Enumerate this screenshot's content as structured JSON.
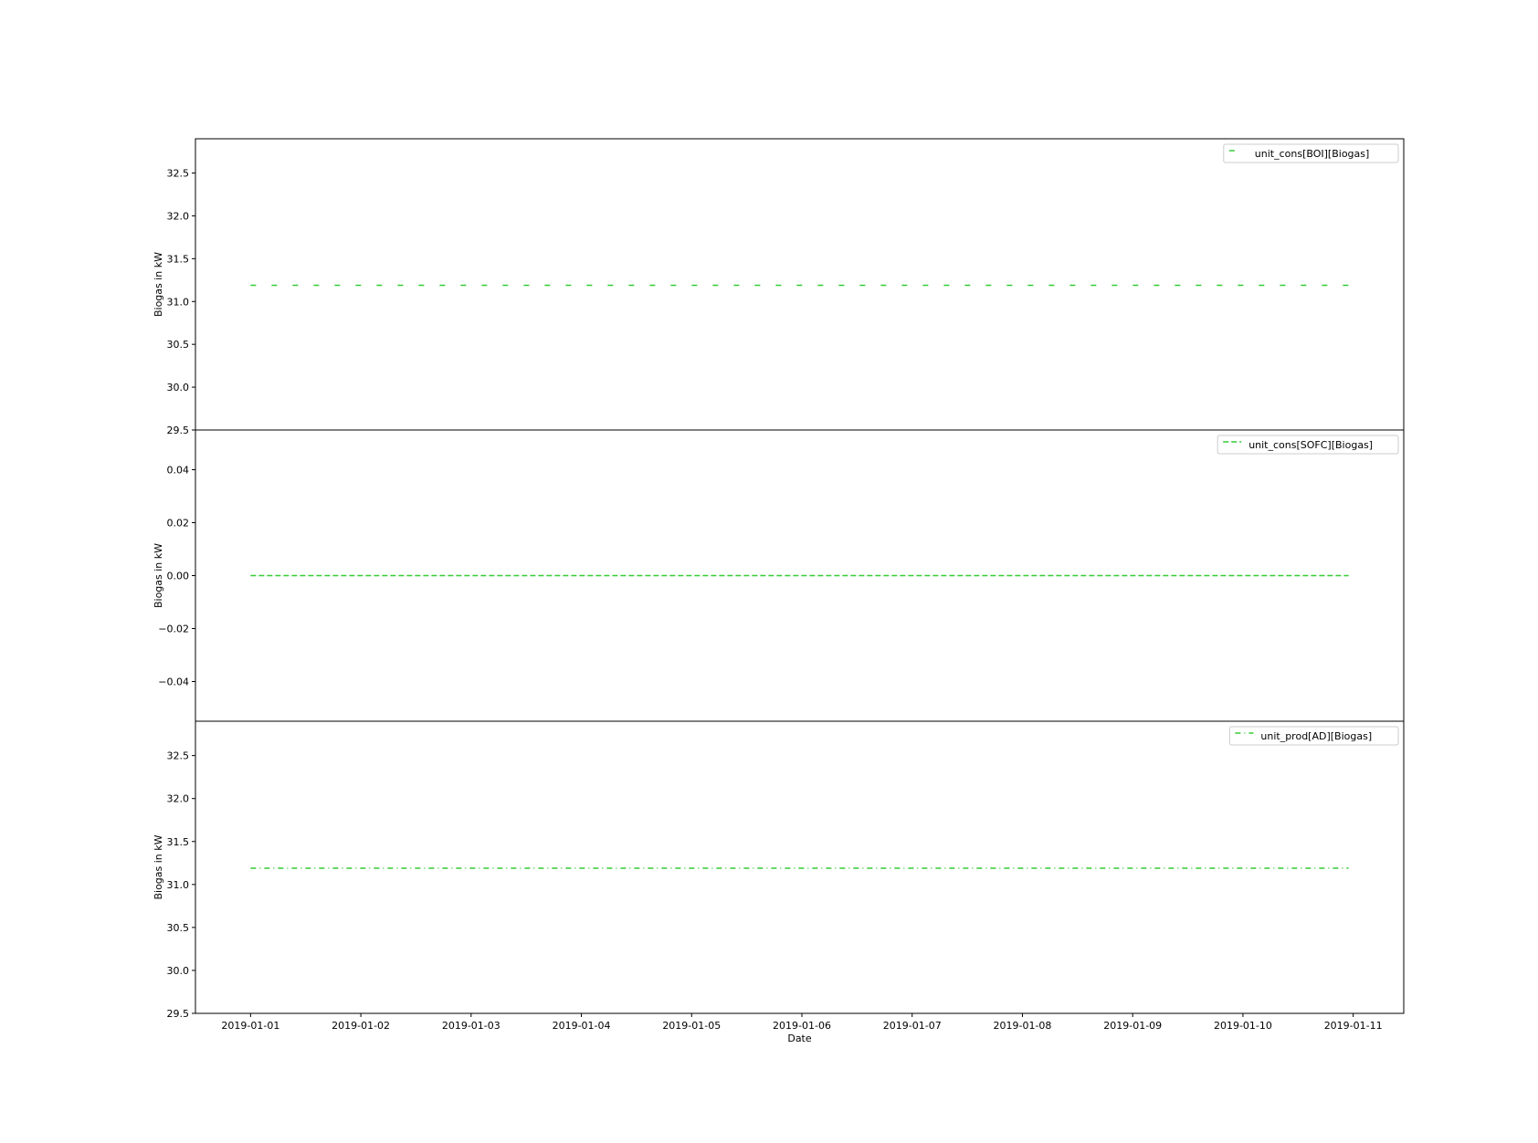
{
  "chart_data": [
    {
      "type": "line",
      "ylabel": "Biogas in kW",
      "ylim": [
        29.5,
        32.9
      ],
      "yticks": [
        29.5,
        30.0,
        30.5,
        31.0,
        31.5,
        32.0,
        32.5
      ],
      "ytick_labels": [
        "29.5",
        "30.0",
        "30.5",
        "31.0",
        "31.5",
        "32.0",
        "32.5"
      ],
      "legend_position": "top-right",
      "series": [
        {
          "name": "unit_cons[BOI][Biogas]",
          "style": "dashed",
          "color": "#33cc33",
          "x": [
            "2019-01-01 00:00",
            "2019-01-10 23:00"
          ],
          "y": [
            31.19,
            31.19
          ]
        }
      ]
    },
    {
      "type": "line",
      "ylabel": "Biogas in kW",
      "ylim": [
        -0.055,
        0.055
      ],
      "yticks": [
        -0.04,
        -0.02,
        0.0,
        0.02,
        0.04
      ],
      "ytick_labels": [
        "−0.04",
        "−0.02",
        "0.00",
        "0.02",
        "0.04"
      ],
      "legend_position": "top-right",
      "series": [
        {
          "name": "unit_cons[SOFC][Biogas]",
          "style": "densely-dashed",
          "color": "#33cc33",
          "x": [
            "2019-01-01 00:00",
            "2019-01-10 23:00"
          ],
          "y": [
            0.0,
            0.0
          ]
        }
      ]
    },
    {
      "type": "line",
      "ylabel": "Biogas in kW",
      "xlabel": "Date",
      "ylim": [
        29.5,
        32.9
      ],
      "yticks": [
        29.5,
        30.0,
        30.5,
        31.0,
        31.5,
        32.0,
        32.5
      ],
      "ytick_labels": [
        "29.5",
        "30.0",
        "30.5",
        "31.0",
        "31.5",
        "32.0",
        "32.5"
      ],
      "xlim": [
        "2018-12-31 12:00",
        "2019-01-11 11:00"
      ],
      "xticks": [
        "2019-01-01",
        "2019-01-02",
        "2019-01-03",
        "2019-01-04",
        "2019-01-05",
        "2019-01-06",
        "2019-01-07",
        "2019-01-08",
        "2019-01-09",
        "2019-01-10",
        "2019-01-11"
      ],
      "legend_position": "top-right",
      "series": [
        {
          "name": "unit_prod[AD][Biogas]",
          "style": "dash-dot",
          "color": "#33cc33",
          "x": [
            "2019-01-01 00:00",
            "2019-01-10 23:00"
          ],
          "y": [
            31.19,
            31.19
          ]
        }
      ]
    }
  ]
}
